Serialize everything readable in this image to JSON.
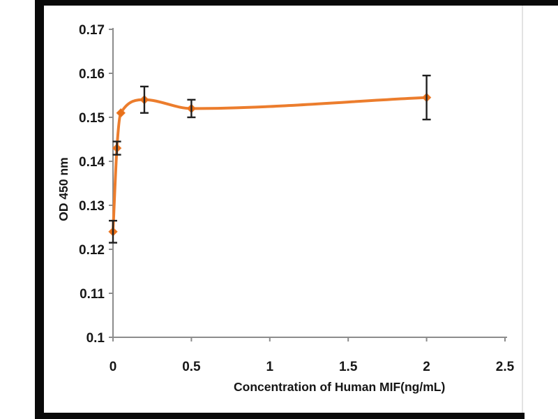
{
  "page": {
    "background": "#ffffff"
  },
  "frame": {
    "color": "#0a0a0a",
    "edge_line_color": "#e3e3e3"
  },
  "chart_data": {
    "type": "line",
    "title": "",
    "xlabel": "Concentration of Human MIF(ng/mL)",
    "ylabel": "OD 450 nm",
    "x": [
      0,
      0.025,
      0.05,
      0.2,
      0.5,
      2
    ],
    "y": [
      0.124,
      0.143,
      0.151,
      0.154,
      0.152,
      0.1545
    ],
    "y_err": [
      0.0025,
      0.0015,
      0,
      0.003,
      0.002,
      0.005
    ],
    "xlim": [
      0,
      2.5
    ],
    "ylim": [
      0.1,
      0.17
    ],
    "xticks": [
      0,
      0.5,
      1,
      1.5,
      2,
      2.5
    ],
    "xtick_labels": [
      "0",
      "0.5",
      "1",
      "1.5",
      "2",
      "2.5"
    ],
    "yticks": [
      0.1,
      0.11,
      0.12,
      0.13,
      0.14,
      0.15,
      0.16,
      0.17
    ],
    "ytick_labels": [
      "0.1",
      "0.11",
      "0.12",
      "0.13",
      "0.14",
      "0.15",
      "0.16",
      "0.17"
    ],
    "grid": false,
    "legend": null,
    "marker": "diamond",
    "line_color": "#ec7d2d",
    "marker_color": "#e8701a",
    "error_bar_color": "#1f1f1f",
    "axis_color": "#8c8c8c",
    "tick_label_color": "#171717"
  }
}
